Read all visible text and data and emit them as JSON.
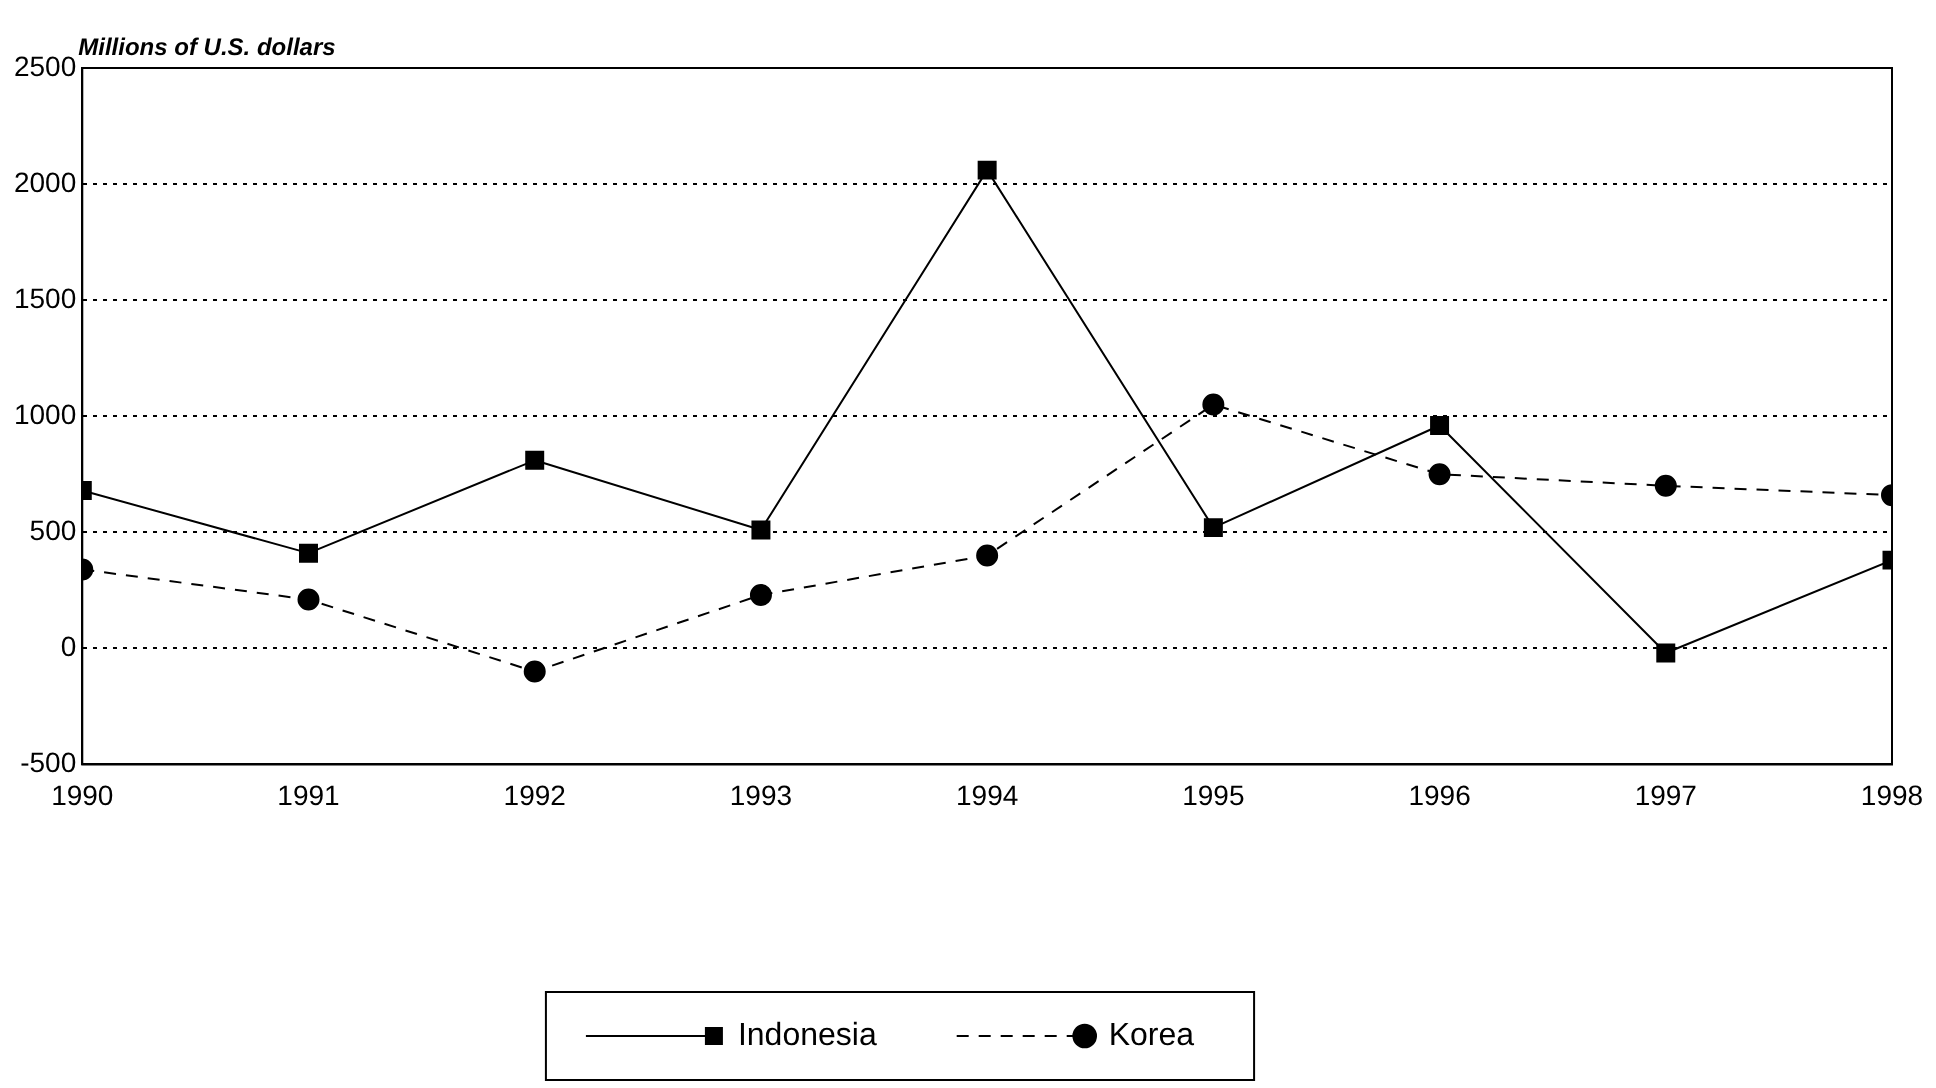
{
  "chart_data": {
    "type": "line",
    "ylabel": "Millions of U.S. dollars",
    "x": [
      1990,
      1991,
      1992,
      1993,
      1994,
      1995,
      1996,
      1997,
      1998
    ],
    "series": [
      {
        "name": "Indonesia",
        "color": "#000000",
        "marker": "square",
        "line_style": "solid",
        "values": [
          680,
          410,
          810,
          510,
          2060,
          520,
          960,
          -20,
          380
        ]
      },
      {
        "name": "Korea",
        "color": "#000000",
        "marker": "circle",
        "line_style": "dashed",
        "values": [
          340,
          210,
          -100,
          230,
          400,
          1050,
          750,
          700,
          660
        ]
      }
    ],
    "xlim": [
      1990,
      1998
    ],
    "xticks": [
      1990,
      1991,
      1992,
      1993,
      1994,
      1995,
      1996,
      1997,
      1998
    ],
    "ylim": [
      -500,
      2500
    ],
    "yticks": [
      -500,
      0,
      500,
      1000,
      1500,
      2000,
      2500
    ],
    "grid": "y",
    "legend": "bottom"
  }
}
